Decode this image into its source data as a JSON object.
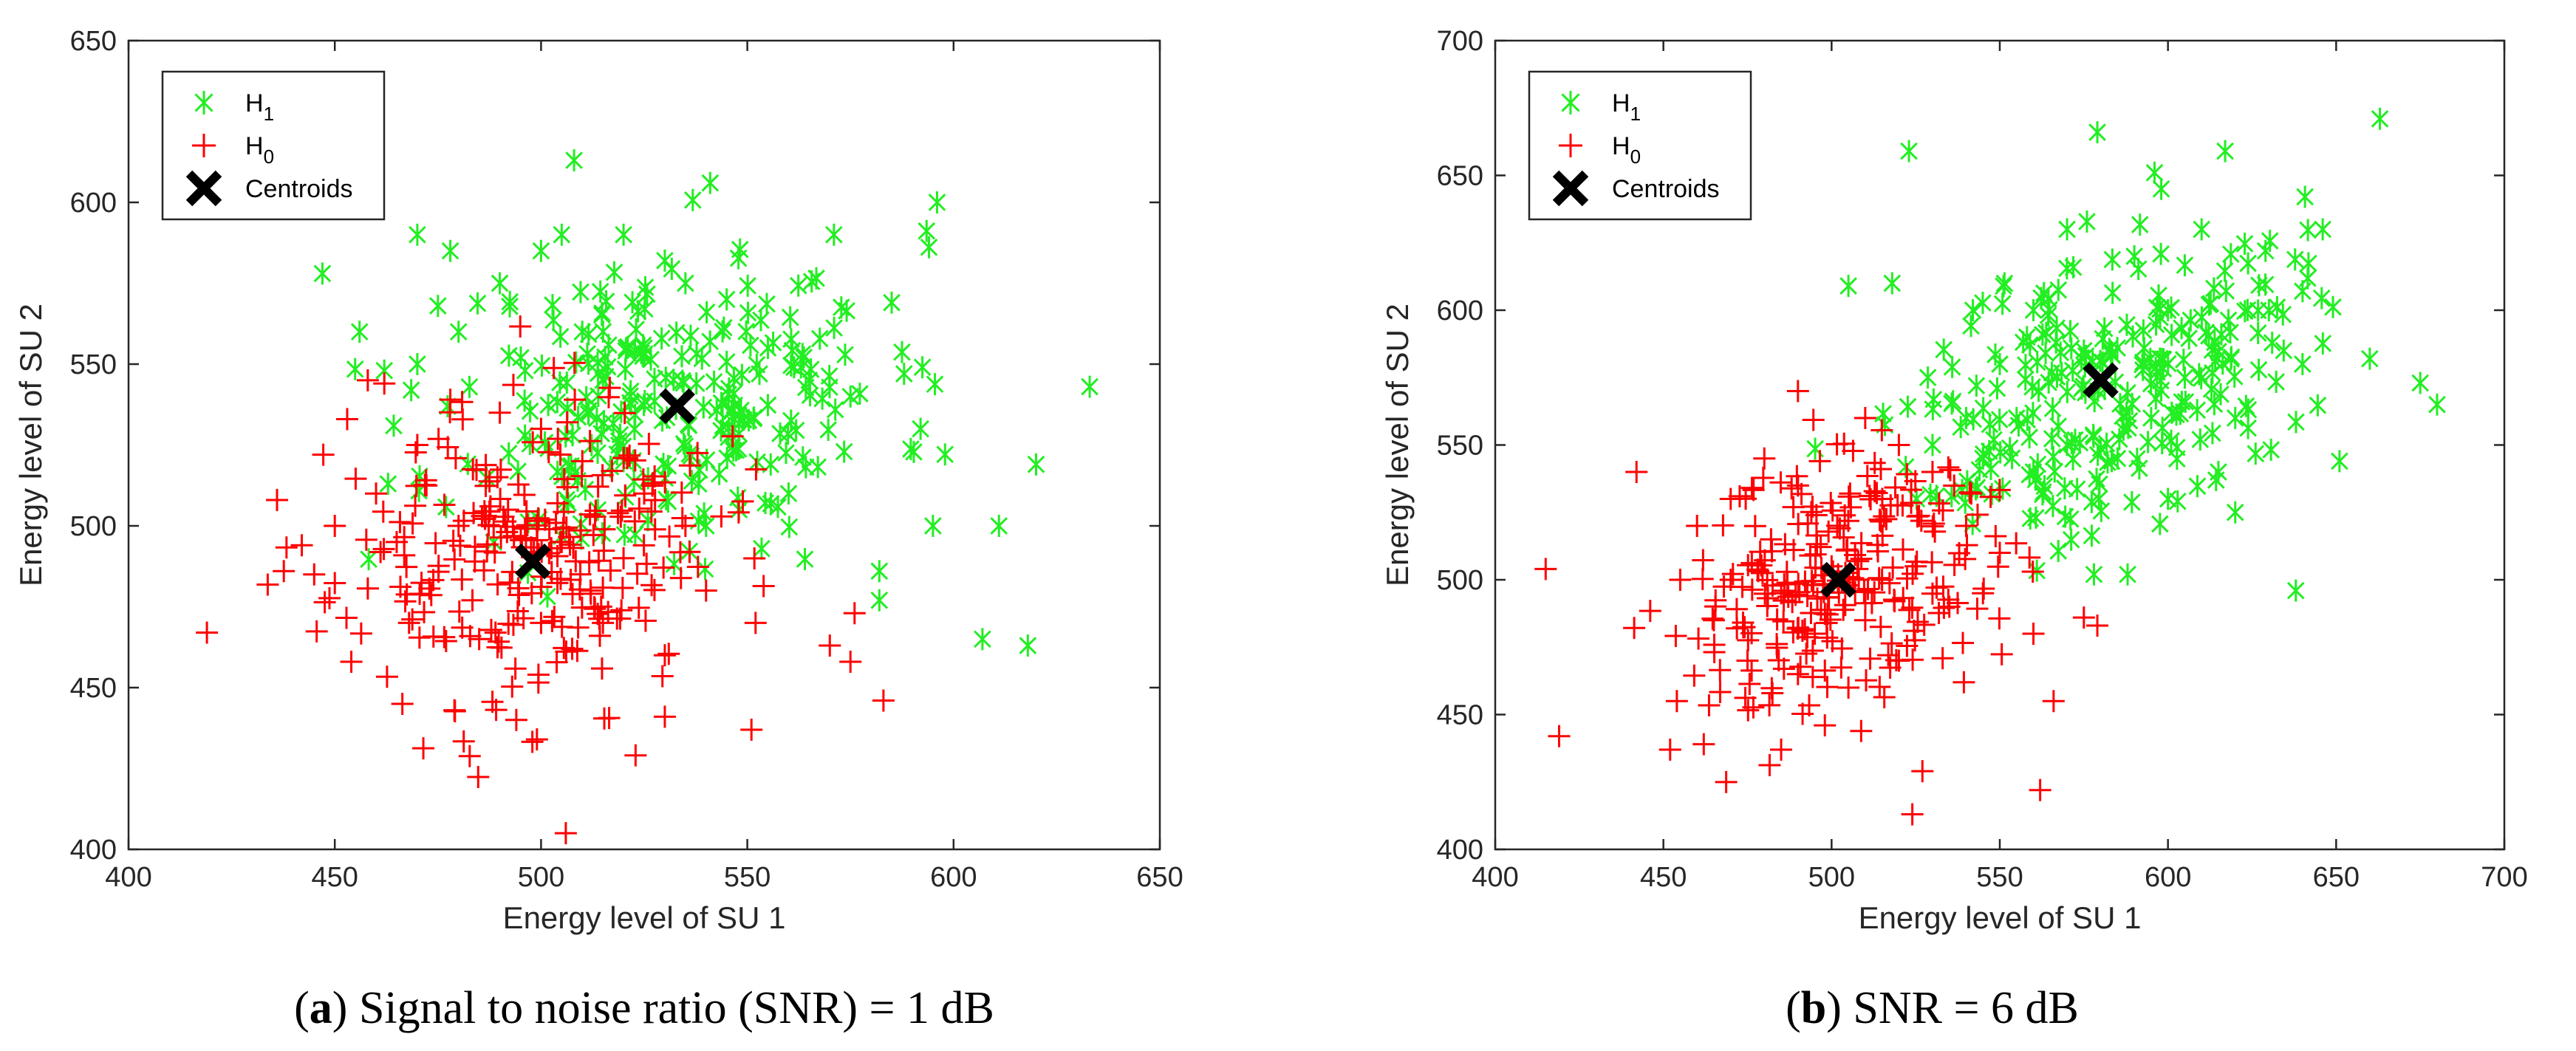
{
  "chart_data": [
    {
      "type": "scatter",
      "panel_label": "a",
      "caption": "Signal to noise ratio (SNR) = 1 dB",
      "xlabel": "Energy level of SU 1",
      "ylabel": "Energy level of SU 2",
      "xlim": [
        400,
        650
      ],
      "ylim": [
        400,
        650
      ],
      "xticks": [
        400,
        450,
        500,
        550,
        600,
        650
      ],
      "yticks": [
        400,
        450,
        500,
        550,
        600,
        650
      ],
      "grid": false,
      "legend_position": "top-left",
      "legend": [
        {
          "label": "H",
          "sub": "1",
          "marker": "asterisk",
          "color": "#22ee22"
        },
        {
          "label": "H",
          "sub": "0",
          "marker": "plus",
          "color": "#ff0000"
        },
        {
          "label": "Centroids",
          "sub": "",
          "marker": "x",
          "color": "#000000"
        }
      ],
      "series": [
        {
          "name": "H1",
          "marker": "asterisk",
          "color": "#22ee22",
          "cluster": {
            "n": 260,
            "mean": [
              531,
              538
            ],
            "std": [
              27,
              23
            ],
            "rho": 0.15,
            "seed": 11
          },
          "points": [
            [
              447,
              578
            ],
            [
              508,
              613
            ],
            [
              541,
              606
            ],
            [
              596,
              600
            ],
            [
              633,
              543
            ],
            [
              620,
              519
            ],
            [
              611,
              500
            ],
            [
              607,
              465
            ],
            [
              618,
              463
            ],
            [
              571,
              590
            ],
            [
              585,
              569
            ],
            [
              582,
              486
            ],
            [
              582,
              477
            ],
            [
              595,
              500
            ],
            [
              470,
              590
            ],
            [
              456,
              560
            ],
            [
              478,
              585
            ],
            [
              505,
              590
            ],
            [
              530,
              582
            ],
            [
              545,
              570
            ],
            [
              555,
              555
            ],
            [
              565,
              545
            ],
            [
              575,
              540
            ],
            [
              588,
              547
            ],
            [
              592,
              530
            ],
            [
              560,
              510
            ],
            [
              548,
              505
            ],
            [
              540,
              500
            ],
            [
              535,
              575
            ],
            [
              520,
              590
            ],
            [
              500,
              585
            ],
            [
              490,
              575
            ],
            [
              480,
              560
            ],
            [
              470,
              550
            ],
            [
              462,
              548
            ],
            [
              475,
              568
            ],
            [
              520,
              520
            ],
            [
              515,
              545
            ],
            [
              525,
              555
            ],
            [
              510,
              560
            ]
          ]
        },
        {
          "name": "H0",
          "marker": "plus",
          "color": "#ff0000",
          "cluster": {
            "n": 260,
            "mean": [
              496,
              491
            ],
            "std": [
              23,
              23
            ],
            "rho": 0.05,
            "seed": 23
          },
          "points": [
            [
              419,
              467
            ],
            [
              436,
              508
            ],
            [
              442,
              494
            ],
            [
              454,
              458
            ],
            [
              458,
              545
            ],
            [
              462,
              544
            ],
            [
              478,
              539
            ],
            [
              453,
              533
            ],
            [
              506,
              405
            ],
            [
              499,
              434
            ],
            [
              494,
              440
            ],
            [
              479,
              443
            ],
            [
              530,
              441
            ],
            [
              551,
              437
            ],
            [
              583,
              446
            ],
            [
              575,
              458
            ],
            [
              576,
              473
            ],
            [
              570,
              463
            ],
            [
              552,
              470
            ],
            [
              540,
              480
            ],
            [
              535,
              500
            ],
            [
              525,
              510
            ],
            [
              510,
              520
            ],
            [
              500,
              530
            ],
            [
              490,
              535
            ],
            [
              470,
              525
            ],
            [
              460,
              510
            ],
            [
              450,
              500
            ],
            [
              445,
              485
            ],
            [
              468,
              470
            ],
            [
              485,
              465
            ],
            [
              500,
              470
            ],
            [
              512,
              480
            ],
            [
              520,
              490
            ],
            [
              480,
              500
            ],
            [
              465,
              495
            ],
            [
              492,
              505
            ],
            [
              505,
              495
            ],
            [
              515,
              470
            ],
            [
              530,
              460
            ]
          ]
        }
      ],
      "centroids": [
        [
          498,
          489
        ],
        [
          533,
          537
        ]
      ]
    },
    {
      "type": "scatter",
      "panel_label": "b",
      "caption": "SNR = 6 dB",
      "xlabel": "Energy level of SU 1",
      "ylabel": "Energy level of SU 2",
      "xlim": [
        400,
        700
      ],
      "ylim": [
        400,
        700
      ],
      "xticks": [
        400,
        450,
        500,
        550,
        600,
        650,
        700
      ],
      "yticks": [
        400,
        450,
        500,
        550,
        600,
        650,
        700
      ],
      "grid": false,
      "legend_position": "top-left",
      "legend": [
        {
          "label": "H",
          "sub": "1",
          "marker": "asterisk",
          "color": "#22ee22"
        },
        {
          "label": "H",
          "sub": "0",
          "marker": "plus",
          "color": "#ff0000"
        },
        {
          "label": "Centroids",
          "sub": "",
          "marker": "x",
          "color": "#000000"
        }
      ],
      "series": [
        {
          "name": "H1",
          "marker": "asterisk",
          "color": "#22ee22",
          "cluster": {
            "n": 260,
            "mean": [
              582,
              573
            ],
            "std": [
              28,
              28
            ],
            "rho": 0.4,
            "seed": 37
          },
          "points": [
            [
              663,
              671
            ],
            [
              579,
              666
            ],
            [
              523,
              659
            ],
            [
              617,
              659
            ],
            [
              638,
              496
            ],
            [
              651,
              544
            ],
            [
              680,
              565
            ],
            [
              675,
              573
            ],
            [
              660,
              582
            ],
            [
              646,
              630
            ],
            [
              629,
              622
            ],
            [
              596,
              651
            ],
            [
              598,
              645
            ],
            [
              578,
              502
            ],
            [
              588,
              502
            ],
            [
              505,
              609
            ],
            [
              518,
              610
            ],
            [
              542,
              600
            ],
            [
              550,
              580
            ],
            [
              540,
              560
            ],
            [
              530,
              550
            ],
            [
              545,
              545
            ],
            [
              560,
              540
            ],
            [
              600,
              530
            ],
            [
              620,
              525
            ],
            [
              640,
              580
            ],
            [
              630,
              600
            ],
            [
              610,
              630
            ],
            [
              590,
              620
            ],
            [
              570,
              630
            ],
            [
              620,
              560
            ],
            [
              600,
              600
            ],
            [
              560,
              600
            ],
            [
              555,
              560
            ],
            [
              575,
              585
            ],
            [
              595,
              560
            ],
            [
              615,
              540
            ],
            [
              585,
              545
            ],
            [
              570,
              550
            ],
            [
              605,
              575
            ]
          ]
        },
        {
          "name": "H0",
          "marker": "plus",
          "color": "#ff0000",
          "cluster": {
            "n": 260,
            "mean": [
              502,
              498
            ],
            "std": [
              24,
              26
            ],
            "rho": 0.35,
            "seed": 51
          },
          "points": [
            [
              415,
              504
            ],
            [
              419,
              442
            ],
            [
              442,
              540
            ],
            [
              452,
              437
            ],
            [
              454,
              455
            ],
            [
              462,
              439
            ],
            [
              485,
              437
            ],
            [
              498,
              446
            ],
            [
              524,
              413
            ],
            [
              527,
              429
            ],
            [
              562,
              422
            ],
            [
              566,
              455
            ],
            [
              579,
              483
            ],
            [
              575,
              486
            ],
            [
              560,
              480
            ],
            [
              550,
              510
            ],
            [
              540,
              520
            ],
            [
              530,
              540
            ],
            [
              520,
              550
            ],
            [
              510,
              560
            ],
            [
              490,
              570
            ],
            [
              480,
              545
            ],
            [
              470,
              530
            ],
            [
              460,
              520
            ],
            [
              455,
              500
            ],
            [
              465,
              485
            ],
            [
              475,
              470
            ],
            [
              490,
              465
            ],
            [
              505,
              460
            ],
            [
              520,
              470
            ],
            [
              535,
              490
            ],
            [
              545,
              495
            ],
            [
              515,
              500
            ],
            [
              500,
              505
            ],
            [
              485,
              495
            ],
            [
              495,
              480
            ],
            [
              510,
              485
            ],
            [
              525,
              505
            ],
            [
              470,
              500
            ],
            [
              482,
              515
            ]
          ]
        }
      ],
      "centroids": [
        [
          502,
          500
        ],
        [
          580,
          574
        ]
      ]
    }
  ]
}
